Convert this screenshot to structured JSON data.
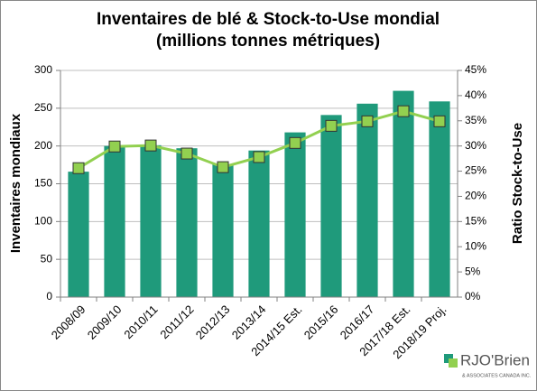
{
  "chart_data": {
    "type": "bar",
    "title": "Inventaires de blé & Stock-to-Use mondial",
    "subtitle": "(millions tonnes métriques)",
    "y_label": "Inventaires mondiaux",
    "y2_label": "Ratio Stock-to-Use",
    "categories": [
      "2008/09",
      "2009/10",
      "2010/11",
      "2011/12",
      "2012/13",
      "2013/14",
      "2014/15 Est.",
      "2015/16",
      "2016/17",
      "2017/18 Est.",
      "2018/19 Proj."
    ],
    "series": [
      {
        "type": "bar",
        "color": "#1f9a7b",
        "values": [
          166,
          200,
          201,
          197,
          176,
          194,
          218,
          241,
          256,
          273,
          259
        ]
      },
      {
        "type": "line",
        "axis": "y2",
        "color": "#92d050",
        "values": [
          25.6,
          29.9,
          30.1,
          28.5,
          25.8,
          27.8,
          30.6,
          34.0,
          34.9,
          36.9,
          34.9
        ]
      }
    ],
    "ylim": [
      0,
      300
    ],
    "yticks": [
      0,
      50,
      100,
      150,
      200,
      250,
      300
    ],
    "y2lim": [
      0,
      45
    ],
    "y2ticks": [
      {
        "value": 0,
        "label": "0%"
      },
      {
        "value": 5,
        "label": "5%"
      },
      {
        "value": 10,
        "label": "10%"
      },
      {
        "value": 15,
        "label": "15%"
      },
      {
        "value": 20,
        "label": "20%"
      },
      {
        "value": 25,
        "label": "25%"
      },
      {
        "value": 30,
        "label": "30%"
      },
      {
        "value": 35,
        "label": "35%"
      },
      {
        "value": 40,
        "label": "40%"
      },
      {
        "value": 45,
        "label": "45%"
      }
    ],
    "grid": true
  },
  "logo": {
    "name": "RJO'Brien",
    "sub": "& ASSOCIATES CANADA INC."
  }
}
